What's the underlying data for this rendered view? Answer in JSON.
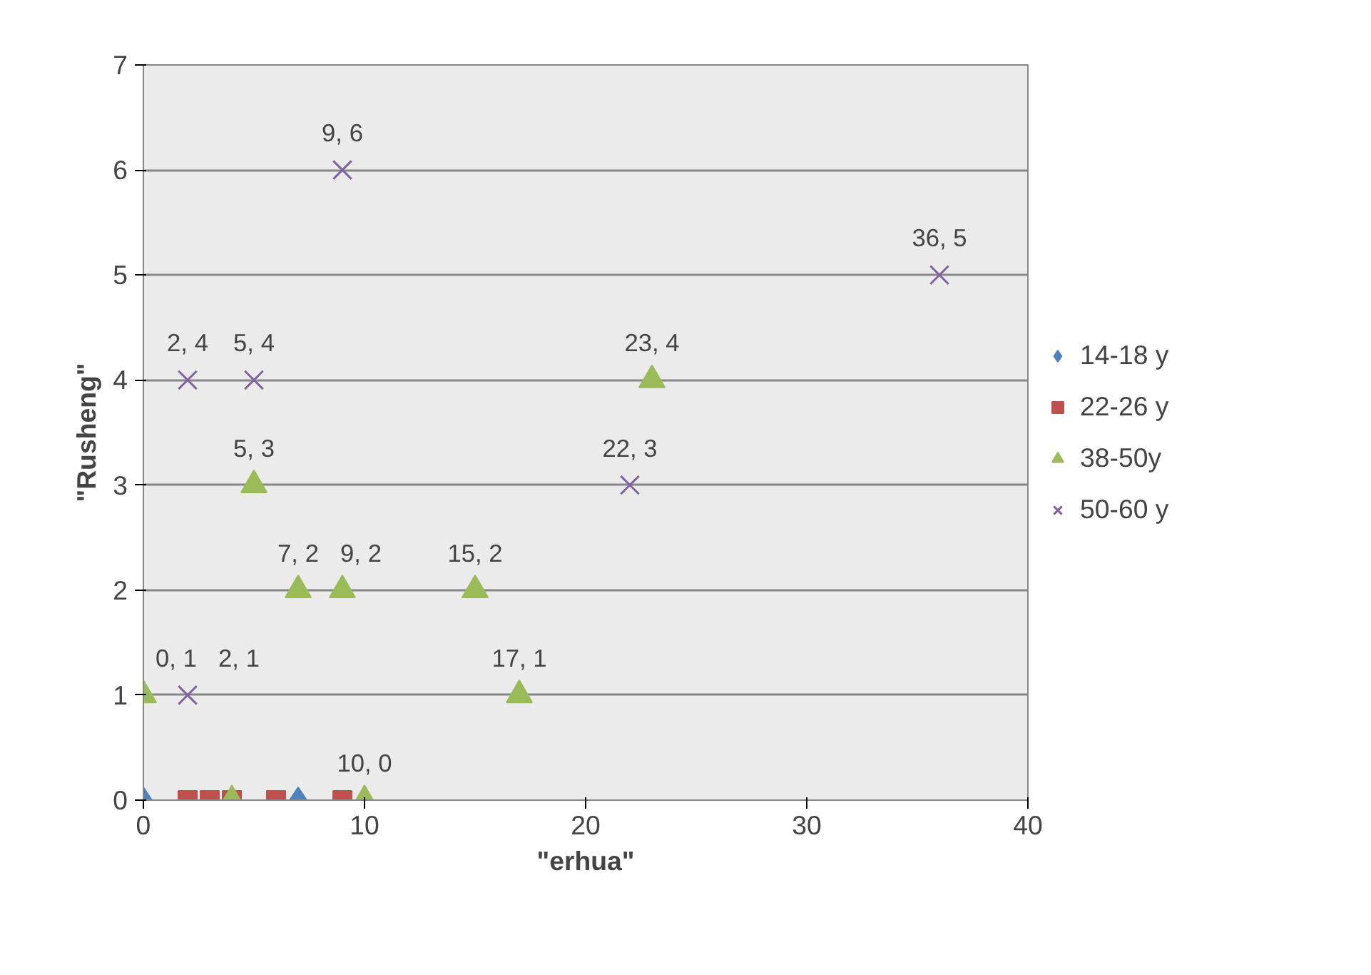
{
  "chart_data": {
    "type": "scatter",
    "xlabel": "\"erhua\"",
    "ylabel": "\"Rusheng\"",
    "xlim": [
      0,
      40
    ],
    "xticks": [
      0,
      10,
      20,
      30,
      40
    ],
    "ylim": [
      0,
      7
    ],
    "yticks": [
      0,
      1,
      2,
      3,
      4,
      5,
      6,
      7
    ],
    "grid": "y",
    "legend": "right",
    "series": [
      {
        "name": "14-18 y",
        "color": "#4f81bd",
        "marker": "diamond",
        "x": [
          0,
          7
        ],
        "values": [
          0,
          0
        ]
      },
      {
        "name": "22-26 y",
        "color": "#c0504d",
        "marker": "square",
        "x": [
          2,
          3,
          4,
          6,
          9
        ],
        "values": [
          0,
          0,
          0,
          0,
          0
        ]
      },
      {
        "name": "38-50y",
        "color": "#9bbb59",
        "marker": "triangle",
        "x": [
          0,
          5,
          7,
          9,
          15,
          17,
          23,
          4,
          10
        ],
        "values": [
          1,
          3,
          2,
          2,
          2,
          1,
          4,
          0,
          0
        ],
        "value_labels": [
          "0, 1",
          "5, 3",
          "7, 2",
          "9, 2",
          "15, 2",
          "17, 1",
          "23, 4",
          null,
          "10, 0"
        ]
      },
      {
        "name": "50-60 y",
        "color": "#8064a2",
        "marker": "cross",
        "x": [
          2,
          5,
          9,
          36,
          22,
          2
        ],
        "values": [
          4,
          4,
          6,
          5,
          3,
          1
        ],
        "value_labels": [
          "2, 4",
          "5, 4",
          "9, 6",
          "36, 5",
          "22, 3",
          "2, 1"
        ]
      }
    ]
  }
}
